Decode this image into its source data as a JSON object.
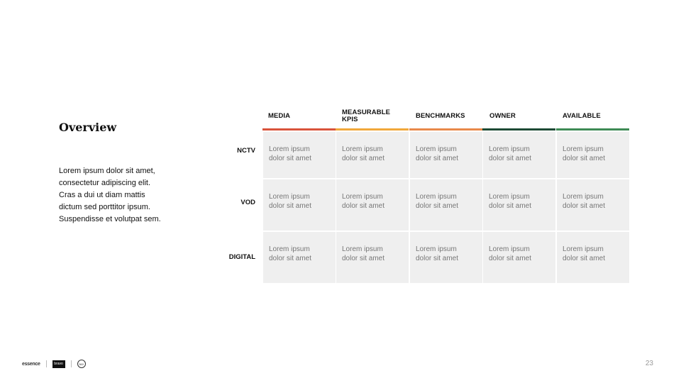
{
  "title": "Overview",
  "body_lines": [
    "Lorem ipsum dolor sit amet,",
    "consectetur adipiscing elit.",
    "Cras a dui ut diam mattis",
    "dictum sed porttitor ipsum.",
    "Suspendisse et volutpat sem."
  ],
  "columns": [
    {
      "line1": "MEDIA",
      "line2": "",
      "color": "#d9533b"
    },
    {
      "line1": "MEASURABLE",
      "line2": "KPIS",
      "color": "#f0a83a"
    },
    {
      "line1": "BENCHMARKS",
      "line2": "",
      "color": "#e8894a"
    },
    {
      "line1": "OWNER",
      "line2": "",
      "color": "#1c4a35"
    },
    {
      "line1": "AVAILABLE",
      "line2": "",
      "color": "#3e8a55"
    }
  ],
  "rows": [
    "NCTV",
    "VOD",
    "DIGITAL"
  ],
  "cell_text": {
    "line1": "Lorem ipsum",
    "line2": "dolor sit amet"
  },
  "footer": {
    "logo_text": "essence",
    "badge_text": "bravo",
    "circle_text": "360"
  },
  "page_number": "23"
}
